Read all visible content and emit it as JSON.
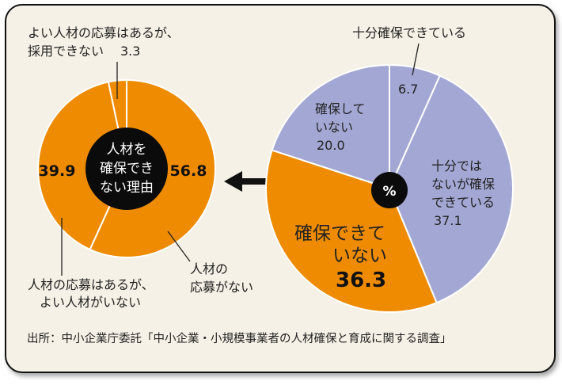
{
  "chart_data": [
    {
      "type": "pie",
      "title": "人材を確保できない理由",
      "unit": "%",
      "slices": [
        {
          "label_lines": [
            "人材の",
            "応募がない"
          ],
          "value": 56.8,
          "value_text": "56.8",
          "color": "#ee8b00"
        },
        {
          "label_lines": [
            "人材の応募はあるが、",
            "よい人材がいない"
          ],
          "value": 39.9,
          "value_text": "39.9",
          "color": "#ee8b00"
        },
        {
          "label_lines": [
            "よい人材の応募はあるが、",
            "採用できない"
          ],
          "value": 3.3,
          "value_text": "3.3",
          "color": "#ee8b00"
        }
      ],
      "center_lines": [
        "人材を",
        "確保でき",
        "ない理由"
      ]
    },
    {
      "type": "pie",
      "unit": "%",
      "center_label": "%",
      "slices": [
        {
          "label_lines": [
            "十分確保できている"
          ],
          "value": 6.7,
          "value_text": "6.7",
          "color": "#a3a7d3"
        },
        {
          "label_lines": [
            "十分では",
            "ないが確保",
            "できている"
          ],
          "value": 37.1,
          "value_text": "37.1",
          "color": "#a3a7d3"
        },
        {
          "label_lines": [
            "確保できて",
            "いない"
          ],
          "value": 36.3,
          "value_text": "36.3",
          "color": "#ee8b00"
        },
        {
          "label_lines": [
            "確保して",
            "いない"
          ],
          "value": 20.0,
          "value_text": "20.0",
          "color": "#a3a7d3"
        }
      ]
    }
  ],
  "source": "出所：中小企業庁委託「中小企業・小規模事業者の人材確保と育成に関する調査」"
}
